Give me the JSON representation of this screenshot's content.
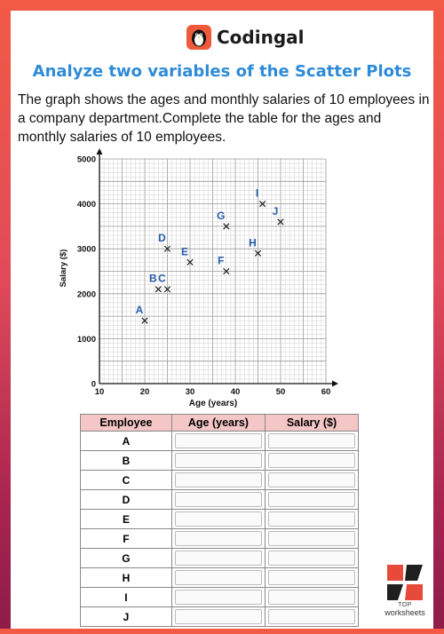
{
  "brand": {
    "name": "Codingal",
    "watermark_top": "TOP",
    "watermark_bottom": "worksheets"
  },
  "title": "Analyze two variables of the Scatter Plots",
  "description": "The graph shows the ages and monthly salaries of 10 employees in a company department.Complete the table for the ages and monthly salaries of 10 employees.",
  "colors": {
    "background_top": "#f25a45",
    "background_bottom": "#8e1c4a",
    "title": "#2e8bd8",
    "point_label": "#2a5ea8",
    "table_header": "#f4c6c6"
  },
  "chart_data": {
    "type": "scatter",
    "xlabel": "Age (years)",
    "ylabel": "Salary ($)",
    "xlim": [
      10,
      60
    ],
    "ylim": [
      0,
      5000
    ],
    "x_ticks": [
      10,
      20,
      30,
      40,
      50,
      60
    ],
    "y_ticks": [
      0,
      1000,
      2000,
      3000,
      4000,
      5000
    ],
    "grid": true,
    "marker": "x",
    "points": [
      {
        "label": "A",
        "x": 20,
        "y": 1400
      },
      {
        "label": "B",
        "x": 23,
        "y": 2100
      },
      {
        "label": "C",
        "x": 25,
        "y": 2100
      },
      {
        "label": "D",
        "x": 25,
        "y": 3000
      },
      {
        "label": "E",
        "x": 30,
        "y": 2700
      },
      {
        "label": "F",
        "x": 38,
        "y": 2500
      },
      {
        "label": "G",
        "x": 38,
        "y": 3500
      },
      {
        "label": "H",
        "x": 45,
        "y": 2900
      },
      {
        "label": "I",
        "x": 46,
        "y": 4000
      },
      {
        "label": "J",
        "x": 50,
        "y": 3600
      }
    ]
  },
  "table": {
    "headers": [
      "Employee",
      "Age (years)",
      "Salary ($)"
    ],
    "rows": [
      "A",
      "B",
      "C",
      "D",
      "E",
      "F",
      "G",
      "H",
      "I",
      "J"
    ]
  }
}
